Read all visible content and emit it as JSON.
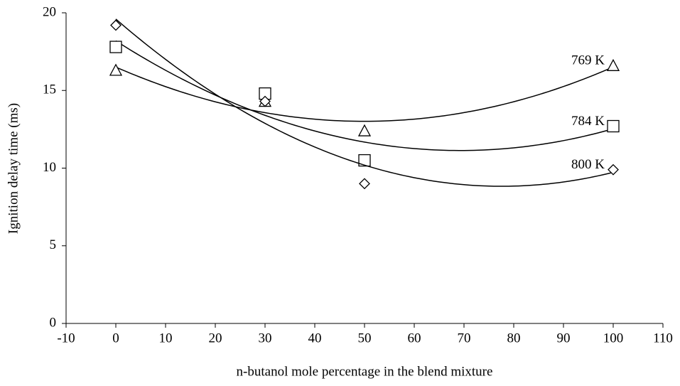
{
  "chart_data": {
    "type": "scatter",
    "x_label": "n-butanol mole percentage in the blend mixture",
    "y_label": "Ignition delay time (ms)",
    "xlim": [
      -10,
      110
    ],
    "xticks": [
      -10,
      0,
      10,
      20,
      30,
      40,
      50,
      60,
      70,
      80,
      90,
      100,
      110
    ],
    "ylim": [
      0,
      20
    ],
    "yticks": [
      0,
      5,
      10,
      15,
      20
    ],
    "trendline": "quadratic",
    "series": [
      {
        "name": "769 K",
        "marker": "triangle",
        "color": "#000000",
        "x": [
          0,
          30,
          50,
          100
        ],
        "values": [
          16.3,
          14.3,
          12.4,
          16.6
        ]
      },
      {
        "name": "784 K",
        "marker": "square",
        "color": "#000000",
        "x": [
          0,
          30,
          50,
          100
        ],
        "values": [
          17.8,
          14.8,
          10.5,
          12.7
        ]
      },
      {
        "name": "800 K",
        "marker": "diamond",
        "color": "#000000",
        "x": [
          0,
          30,
          50,
          100
        ],
        "values": [
          19.2,
          14.3,
          9.0,
          9.9
        ]
      }
    ]
  }
}
